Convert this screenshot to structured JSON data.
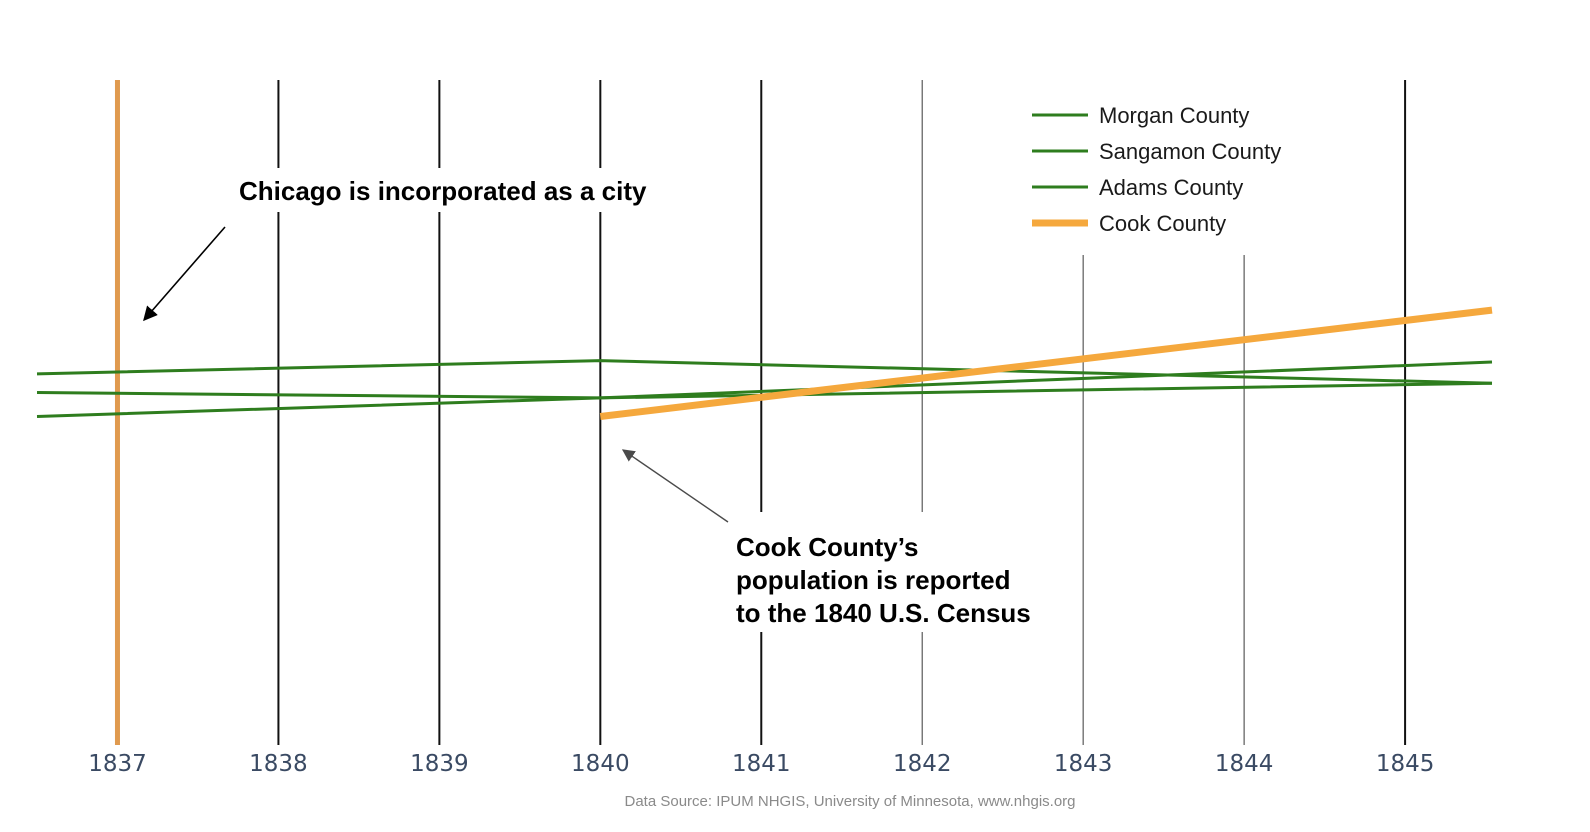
{
  "chart_data": {
    "type": "line",
    "x": [
      1837,
      1838,
      1839,
      1840,
      1841,
      1842,
      1843,
      1844,
      1845
    ],
    "xlim": [
      1836.5,
      1845.54
    ],
    "ylim": [
      0,
      1
    ],
    "grid": true,
    "legend_placement": "top-right",
    "tick_labels": [
      "1837",
      "1838",
      "1839",
      "1840",
      "1841",
      "1842",
      "1843",
      "1844",
      "1845"
    ],
    "series": [
      {
        "name": "Morgan County",
        "color": "#2e7d1e",
        "points": [
          [
            1836.5,
            0.558
          ],
          [
            1840,
            0.578
          ],
          [
            1845.54,
            0.544
          ]
        ]
      },
      {
        "name": "Sangamon County",
        "color": "#2e7d1e",
        "points": [
          [
            1836.5,
            0.53
          ],
          [
            1840,
            0.522
          ],
          [
            1845.54,
            0.576
          ]
        ]
      },
      {
        "name": "Adams County",
        "color": "#2e7d1e",
        "points": [
          [
            1836.5,
            0.494
          ],
          [
            1840,
            0.522
          ],
          [
            1845.54,
            0.544
          ]
        ]
      },
      {
        "name": "Cook County",
        "color": "#f5a83d",
        "points": [
          [
            1840,
            0.494
          ],
          [
            1845.54,
            0.654
          ]
        ]
      }
    ],
    "event_marker": {
      "x": 1837,
      "color": "#e09a4f"
    },
    "annotations": [
      {
        "id": "incorporated",
        "lines": [
          "Chicago is incorporated as a city"
        ]
      },
      {
        "id": "census",
        "lines": [
          "Cook County’s",
          "population is reported",
          "to the 1840 U.S. Census"
        ]
      }
    ],
    "source": "Data Source: IPUM NHGIS, University of Minnesota, www.nhgis.org"
  }
}
